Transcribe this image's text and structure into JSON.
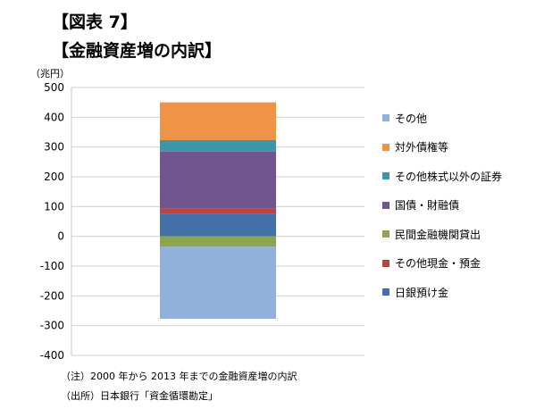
{
  "title_line1": "【図表 7】",
  "title_line2": "【金融資産増の内訳】",
  "unit_label": "（兆円）",
  "note": "（注）2000 年から 2013 年までの金融資産増の内訳",
  "source": "（出所）日本銀行「資金循環勘定」",
  "chart_data": {
    "type": "bar",
    "stacked": true,
    "categories": [
      ""
    ],
    "ylim": [
      -400,
      500
    ],
    "yticks": [
      500,
      400,
      300,
      200,
      100,
      0,
      -100,
      -200,
      -300,
      -400
    ],
    "grid": true,
    "legend_position": "right",
    "title": "",
    "xlabel": "",
    "ylabel": "",
    "series": [
      {
        "name": "日銀預け金",
        "values": [
          75
        ],
        "color": "#4472a8"
      },
      {
        "name": "その他現金・預金",
        "values": [
          18
        ],
        "color": "#b64643"
      },
      {
        "name": "民間金融機関貸出",
        "values": [
          -35
        ],
        "color": "#8ba64f"
      },
      {
        "name": "国債・財融債",
        "values": [
          192
        ],
        "color": "#70558f"
      },
      {
        "name": "その他株式以外の証券",
        "values": [
          38
        ],
        "color": "#3b95ab"
      },
      {
        "name": "対外債権等",
        "values": [
          127
        ],
        "color": "#ef9447"
      },
      {
        "name": "その他",
        "values": [
          -242
        ],
        "color": "#91b0db"
      }
    ]
  }
}
